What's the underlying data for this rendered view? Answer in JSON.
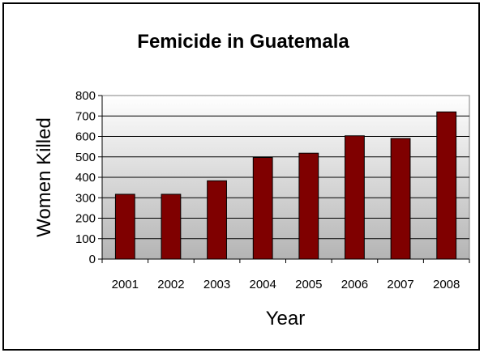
{
  "chart_data": {
    "type": "bar",
    "title": "Femicide in Guatemala",
    "xlabel": "Year",
    "ylabel": "Women Killed",
    "categories": [
      "2001",
      "2002",
      "2003",
      "2004",
      "2005",
      "2006",
      "2007",
      "2008"
    ],
    "values": [
      317,
      317,
      383,
      497,
      518,
      603,
      590,
      720
    ],
    "ylim": [
      0,
      800
    ],
    "yticks": [
      "0",
      "100",
      "200",
      "300",
      "400",
      "500",
      "600",
      "700",
      "800"
    ],
    "grid": true,
    "legend": "none",
    "colors": {
      "bar_fill": "#7f0000",
      "bar_edge": "#000000",
      "plot_top": "#ffffff",
      "plot_bottom": "#b4b4b4"
    }
  }
}
